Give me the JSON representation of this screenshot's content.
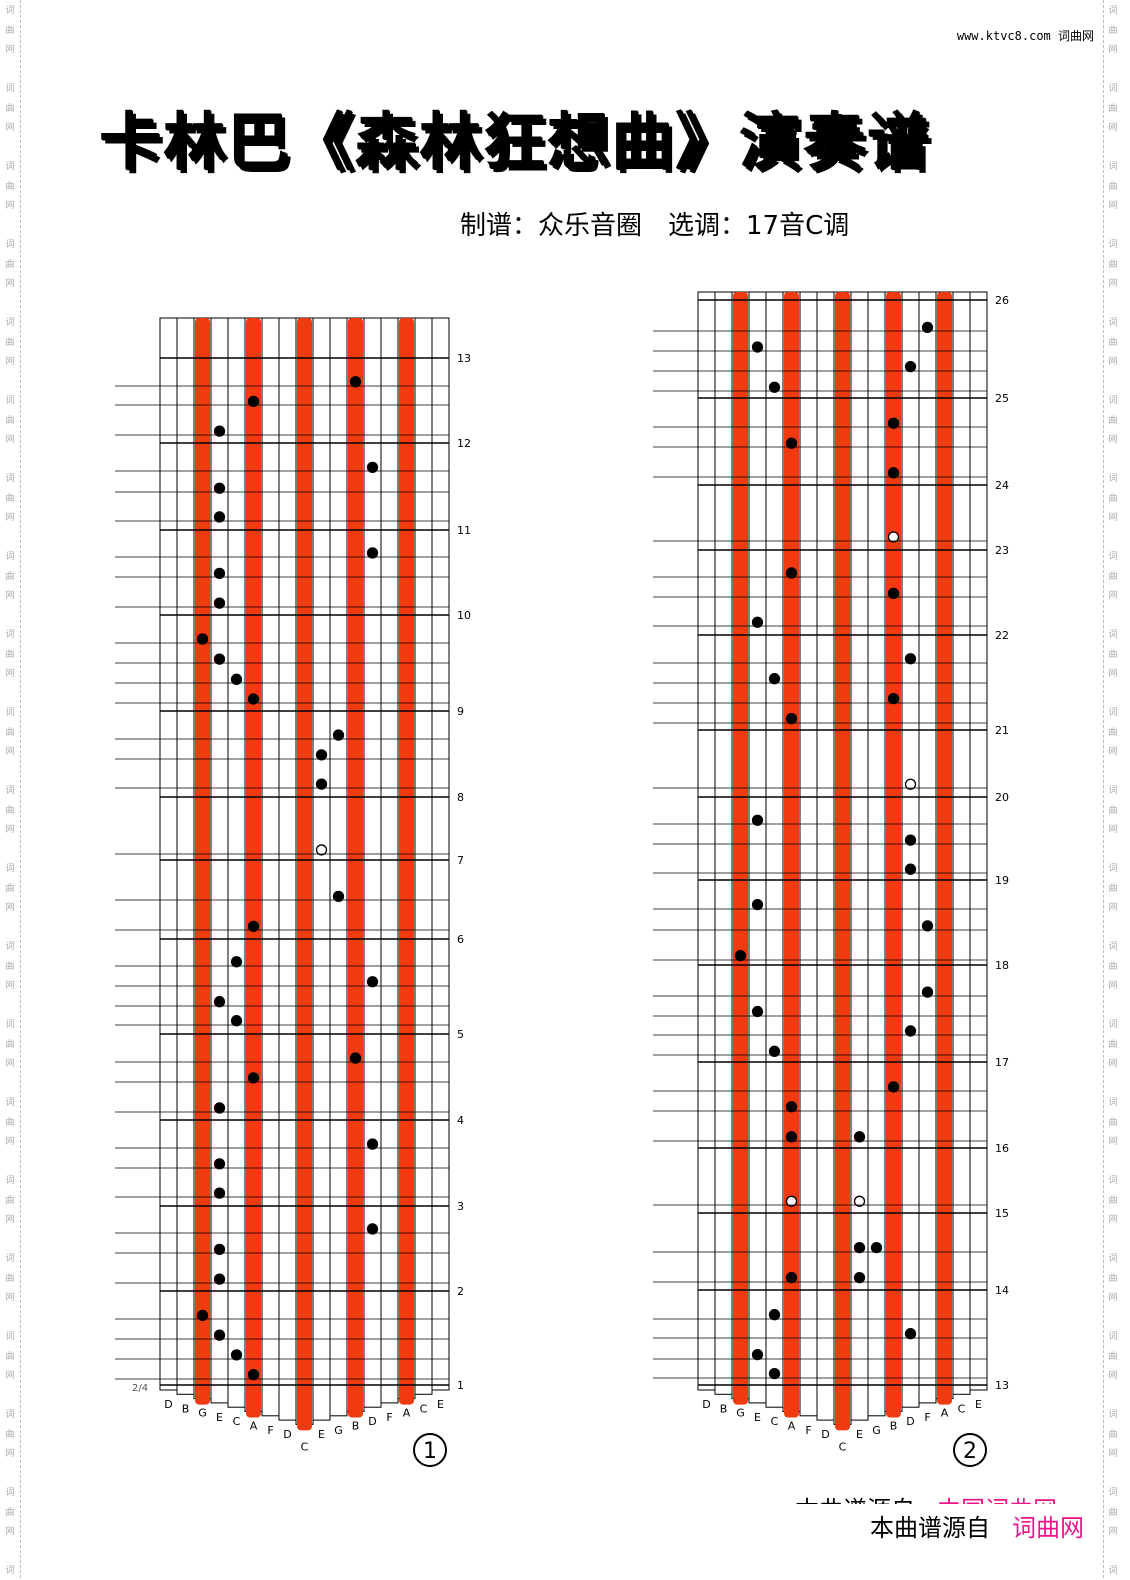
{
  "watermark": "词曲网",
  "site": "www.ktvc8.com 词曲网",
  "title": "卡林巴《森林狂想曲》演奏谱",
  "subtitle": "制谱：众乐音圈　选调：17音C调",
  "tine_labels": [
    "D",
    "B",
    "G",
    "E",
    "C",
    "A",
    "F",
    "D",
    "C",
    "E",
    "G",
    "B",
    "D",
    "F",
    "A",
    "C",
    "E"
  ],
  "highlighted_tines": [
    2,
    5,
    8,
    11,
    14
  ],
  "colors": {
    "tine_highlight": "#f03a10",
    "note": "#000000",
    "brand_pink": "#f0148c"
  },
  "panels": [
    {
      "number": "①",
      "bottom_marker": "2/4",
      "measures": [
        "1",
        "2",
        "3",
        "4",
        "5",
        "6",
        "7",
        "8",
        "9",
        "10",
        "11",
        "12",
        "13"
      ],
      "notes": [
        {
          "m": 1,
          "f": 0.74,
          "t": 2
        },
        {
          "m": 1,
          "f": 0.53,
          "t": 3
        },
        {
          "m": 1,
          "f": 0.32,
          "t": 4
        },
        {
          "m": 1,
          "f": 0.11,
          "t": 5
        },
        {
          "m": 2,
          "f": 0.73,
          "t": 12
        },
        {
          "m": 2,
          "f": 0.49,
          "t": 3
        },
        {
          "m": 2,
          "f": 0.14,
          "t": 3
        },
        {
          "m": 3,
          "f": 0.72,
          "t": 12
        },
        {
          "m": 3,
          "f": 0.49,
          "t": 3
        },
        {
          "m": 3,
          "f": 0.15,
          "t": 3
        },
        {
          "m": 4,
          "f": 0.72,
          "t": 11
        },
        {
          "m": 4,
          "f": 0.49,
          "t": 5
        },
        {
          "m": 4,
          "f": 0.14,
          "t": 3
        },
        {
          "m": 5,
          "f": 0.76,
          "t": 4
        },
        {
          "m": 5,
          "f": 0.55,
          "t": 12
        },
        {
          "m": 5,
          "f": 0.34,
          "t": 3
        },
        {
          "m": 5,
          "f": 0.14,
          "t": 4
        },
        {
          "m": 6,
          "f": 0.54,
          "t": 10
        },
        {
          "m": 6,
          "f": 0.16,
          "t": 5
        },
        {
          "m": 7,
          "f": 0.16,
          "t": 9,
          "open": true
        },
        {
          "m": 8,
          "f": 0.72,
          "t": 10
        },
        {
          "m": 8,
          "f": 0.49,
          "t": 9
        },
        {
          "m": 8,
          "f": 0.15,
          "t": 9
        },
        {
          "m": 9,
          "f": 0.75,
          "t": 2
        },
        {
          "m": 9,
          "f": 0.54,
          "t": 3
        },
        {
          "m": 9,
          "f": 0.33,
          "t": 4
        },
        {
          "m": 9,
          "f": 0.125,
          "t": 5
        },
        {
          "m": 10,
          "f": 0.73,
          "t": 12
        },
        {
          "m": 10,
          "f": 0.49,
          "t": 3
        },
        {
          "m": 10,
          "f": 0.14,
          "t": 3
        },
        {
          "m": 11,
          "f": 0.72,
          "t": 12
        },
        {
          "m": 11,
          "f": 0.48,
          "t": 3
        },
        {
          "m": 11,
          "f": 0.15,
          "t": 3
        },
        {
          "m": 12,
          "f": 0.72,
          "t": 11
        },
        {
          "m": 12,
          "f": 0.49,
          "t": 5
        },
        {
          "m": 12,
          "f": 0.14,
          "t": 3
        }
      ]
    },
    {
      "number": "②",
      "bottom_marker": "",
      "measures": [
        "13",
        "14",
        "15",
        "16",
        "17",
        "18",
        "19",
        "20",
        "21",
        "22",
        "23",
        "24",
        "25",
        "26"
      ],
      "notes": [
        {
          "m": 13,
          "f": 0.74,
          "t": 4
        },
        {
          "m": 13,
          "f": 0.54,
          "t": 12
        },
        {
          "m": 13,
          "f": 0.32,
          "t": 3
        },
        {
          "m": 13,
          "f": 0.12,
          "t": 4
        },
        {
          "m": 14,
          "f": 0.55,
          "t": 9
        },
        {
          "m": 14,
          "f": 0.55,
          "t": 10
        },
        {
          "m": 14,
          "f": 0.16,
          "t": 5
        },
        {
          "m": 14,
          "f": 0.16,
          "t": 9
        },
        {
          "m": 15,
          "f": 0.18,
          "t": 5,
          "open": true
        },
        {
          "m": 15,
          "f": 0.18,
          "t": 9,
          "open": true
        },
        {
          "m": 16,
          "f": 0.71,
          "t": 11
        },
        {
          "m": 16,
          "f": 0.48,
          "t": 5
        },
        {
          "m": 16,
          "f": 0.13,
          "t": 5
        },
        {
          "m": 16,
          "f": 0.13,
          "t": 9
        },
        {
          "m": 17,
          "f": 0.72,
          "t": 13
        },
        {
          "m": 17,
          "f": 0.52,
          "t": 3
        },
        {
          "m": 17,
          "f": 0.32,
          "t": 12
        },
        {
          "m": 17,
          "f": 0.11,
          "t": 4
        },
        {
          "m": 18,
          "f": 0.71,
          "t": 3
        },
        {
          "m": 18,
          "f": 0.46,
          "t": 13
        },
        {
          "m": 18,
          "f": 0.11,
          "t": 2
        },
        {
          "m": 19,
          "f": 0.72,
          "t": 3
        },
        {
          "m": 19,
          "f": 0.48,
          "t": 12
        },
        {
          "m": 19,
          "f": 0.13,
          "t": 12
        },
        {
          "m": 20,
          "f": 0.19,
          "t": 12,
          "open": true
        },
        {
          "m": 21,
          "f": 0.75,
          "t": 12
        },
        {
          "m": 21,
          "f": 0.54,
          "t": 4
        },
        {
          "m": 21,
          "f": 0.33,
          "t": 11
        },
        {
          "m": 21,
          "f": 0.12,
          "t": 5
        },
        {
          "m": 22,
          "f": 0.73,
          "t": 5
        },
        {
          "m": 22,
          "f": 0.49,
          "t": 11
        },
        {
          "m": 22,
          "f": 0.15,
          "t": 3
        },
        {
          "m": 23,
          "f": 0.2,
          "t": 11,
          "open": true
        },
        {
          "m": 24,
          "f": 0.71,
          "t": 11
        },
        {
          "m": 24,
          "f": 0.48,
          "t": 5
        },
        {
          "m": 24,
          "f": 0.14,
          "t": 11
        },
        {
          "m": 25,
          "f": 0.72,
          "t": 13
        },
        {
          "m": 25,
          "f": 0.52,
          "t": 3
        },
        {
          "m": 25,
          "f": 0.32,
          "t": 12
        },
        {
          "m": 25,
          "f": 0.11,
          "t": 4
        }
      ]
    }
  ],
  "footer": {
    "line1_prefix": "本曲谱源自",
    "line1_brand": "中国词曲网",
    "line2_prefix": "本曲谱源自",
    "line2_brand": "词曲网"
  }
}
